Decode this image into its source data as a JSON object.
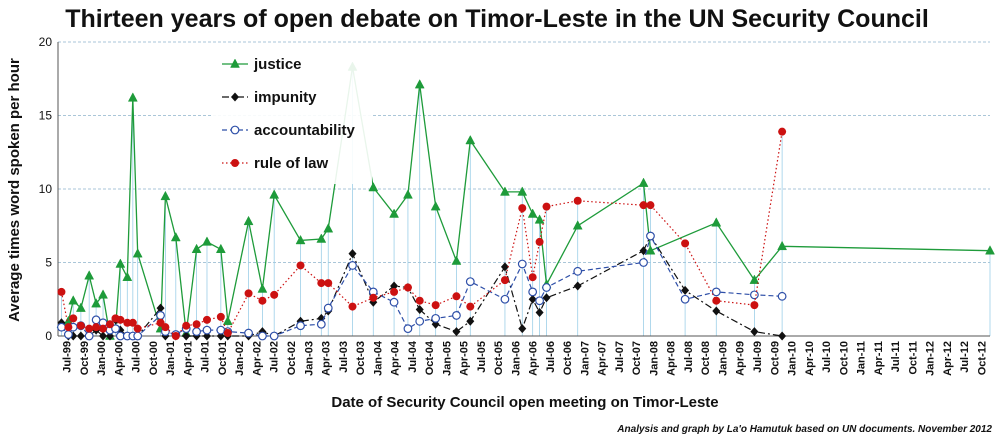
{
  "chart_data": {
    "type": "line",
    "title": "Thirteen years of open debate on Timor-Leste in the UN Security Council",
    "xlabel": "Date of Security Council open meeting on Timor-Leste",
    "ylabel": "Average times word spoken per hour",
    "credit": "Analysis and graph by La'o Hamutuk based on UN documents.  November 2012",
    "ylim": [
      0,
      20
    ],
    "yticks": [
      "0",
      "5",
      "10",
      "15",
      "20"
    ],
    "xlim": [
      1999.5,
      2012.95
    ],
    "xticks": [
      "Jul-99",
      "Oct-99",
      "Jan-00",
      "Apr-00",
      "Jul-00",
      "Oct-00",
      "Jan-01",
      "Apr-01",
      "Jul-01",
      "Oct-01",
      "Jan-02",
      "Apr-02",
      "Jul-02",
      "Oct-02",
      "Jan-03",
      "Apr-03",
      "Jul-03",
      "Oct-03",
      "Jan-04",
      "Apr-04",
      "Jul-04",
      "Oct-04",
      "Jan-05",
      "Apr-05",
      "Jul-05",
      "Oct-05",
      "Jan-06",
      "Apr-06",
      "Jul-06",
      "Oct-06",
      "Jan-07",
      "Apr-07",
      "Jul-07",
      "Oct-07",
      "Jan-08",
      "Apr-08",
      "Jul-08",
      "Oct-08",
      "Jan-09",
      "Apr-09",
      "Jul-09",
      "Oct-09",
      "Jan-10",
      "Apr-10",
      "Jul-10",
      "Oct-10",
      "Jan-11",
      "Apr-11",
      "Jul-11",
      "Oct-11",
      "Jan-12",
      "Apr-12",
      "Jul-12",
      "Oct-12"
    ],
    "grid": true,
    "legend_position": "top-left",
    "x": [
      1999.55,
      1999.65,
      1999.72,
      1999.83,
      1999.95,
      2000.05,
      2000.15,
      2000.25,
      2000.33,
      2000.4,
      2000.5,
      2000.58,
      2000.65,
      2000.98,
      2001.05,
      2001.2,
      2001.35,
      2001.5,
      2001.65,
      2001.85,
      2001.95,
      2002.25,
      2002.45,
      2002.62,
      2003.0,
      2003.3,
      2003.4,
      2003.75,
      2004.05,
      2004.35,
      2004.55,
      2004.72,
      2004.95,
      2005.25,
      2005.45,
      2005.95,
      2006.2,
      2006.35,
      2006.45,
      2006.55,
      2007.0,
      2007.95,
      2008.05,
      2008.55,
      2009.0,
      2009.55,
      2009.95,
      2010.55,
      2010.9,
      2011.1,
      2011.8,
      2011.95,
      2012.95
    ],
    "series": [
      {
        "name": "justice",
        "color": "#1e9b3a",
        "marker": "triangle",
        "values": [
          0.8,
          1.0,
          2.4,
          1.9,
          4.1,
          2.2,
          2.8,
          0.0,
          0.5,
          4.9,
          4.0,
          16.2,
          5.6,
          0.5,
          9.5,
          6.7,
          0.2,
          5.9,
          6.4,
          5.9,
          1.0,
          7.8,
          3.2,
          9.6,
          6.5,
          6.6,
          7.3,
          18.3,
          10.1,
          8.3,
          9.6,
          17.1,
          8.8,
          5.1,
          13.3,
          9.8,
          9.8,
          8.3,
          7.9,
          3.5,
          7.5,
          10.4,
          5.8,
          null,
          7.7,
          3.8,
          6.1,
          null,
          null,
          null,
          null,
          null,
          5.8
        ]
      },
      {
        "name": "impunity",
        "color": "#111111",
        "marker": "diamond",
        "values": [
          0.9,
          0.0,
          0.0,
          0.0,
          0.0,
          0.4,
          0.0,
          0.0,
          1.1,
          0.4,
          0.0,
          0.0,
          0.0,
          1.9,
          0.0,
          0.0,
          0.0,
          0.0,
          0.0,
          0.0,
          0.0,
          0.0,
          0.3,
          0.0,
          1.0,
          1.2,
          1.7,
          5.6,
          2.3,
          3.4,
          3.3,
          1.8,
          0.8,
          0.3,
          1.0,
          4.7,
          0.5,
          2.5,
          1.6,
          2.6,
          3.4,
          5.8,
          6.8,
          3.1,
          1.7,
          0.3,
          0.0,
          null,
          null,
          null,
          null,
          null,
          null
        ]
      },
      {
        "name": "accountability",
        "color": "#2e4fa8",
        "marker": "circle-open",
        "values": [
          0.6,
          0.1,
          0.6,
          0.7,
          0.0,
          1.1,
          0.9,
          0.4,
          0.5,
          0.0,
          0.0,
          0.0,
          0.0,
          1.4,
          0.3,
          0.1,
          0.5,
          0.3,
          0.4,
          0.4,
          0.3,
          0.2,
          0.0,
          0.0,
          0.7,
          0.8,
          1.9,
          4.8,
          3.0,
          2.3,
          0.5,
          1.0,
          1.2,
          1.4,
          3.7,
          2.5,
          4.9,
          3.0,
          2.4,
          3.3,
          4.4,
          5.0,
          6.8,
          2.5,
          3.0,
          2.8,
          2.7,
          null,
          null,
          null,
          null,
          null,
          null
        ]
      },
      {
        "name": "rule of law",
        "color": "#cc1111",
        "marker": "circle-filled",
        "values": [
          3.0,
          0.6,
          1.2,
          0.7,
          0.5,
          0.6,
          0.5,
          0.8,
          1.2,
          1.1,
          0.9,
          0.9,
          0.5,
          0.9,
          0.6,
          0.0,
          0.7,
          0.8,
          1.1,
          1.3,
          0.2,
          2.9,
          2.4,
          2.8,
          4.8,
          3.6,
          3.6,
          2.0,
          2.6,
          3.0,
          3.3,
          2.4,
          2.1,
          2.7,
          2.0,
          3.8,
          8.7,
          4.0,
          6.4,
          8.8,
          9.2,
          8.9,
          8.9,
          6.3,
          2.4,
          2.1,
          13.9,
          null,
          null,
          null,
          null,
          null,
          null
        ]
      }
    ]
  }
}
